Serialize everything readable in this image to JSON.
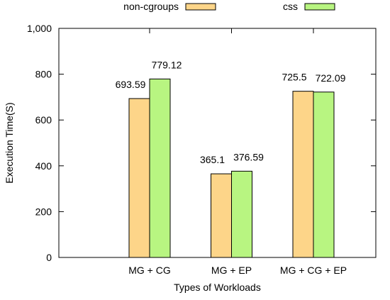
{
  "chart_data": {
    "type": "bar",
    "title": "",
    "xlabel": "Types of Workloads",
    "ylabel": "Execution Time(S)",
    "ylim": [
      0,
      1000
    ],
    "yticks": [
      0,
      200,
      400,
      600,
      800,
      1000
    ],
    "ytick_labels": [
      "0",
      "200",
      "400",
      "600",
      "800",
      "1,000"
    ],
    "categories": [
      "MG + CG",
      "MG + EP",
      "MG + CG + EP"
    ],
    "series": [
      {
        "name": "non-cgroups",
        "color": "#fdd589",
        "values": [
          693.59,
          365.1,
          725.5
        ],
        "labels": [
          "693.59",
          "365.1",
          "725.5"
        ]
      },
      {
        "name": "css",
        "color": "#b8f581",
        "values": [
          779.12,
          376.59,
          722.09
        ],
        "labels": [
          "779.12",
          "376.59",
          "722.09"
        ]
      }
    ],
    "grid": false,
    "legend": "top"
  }
}
